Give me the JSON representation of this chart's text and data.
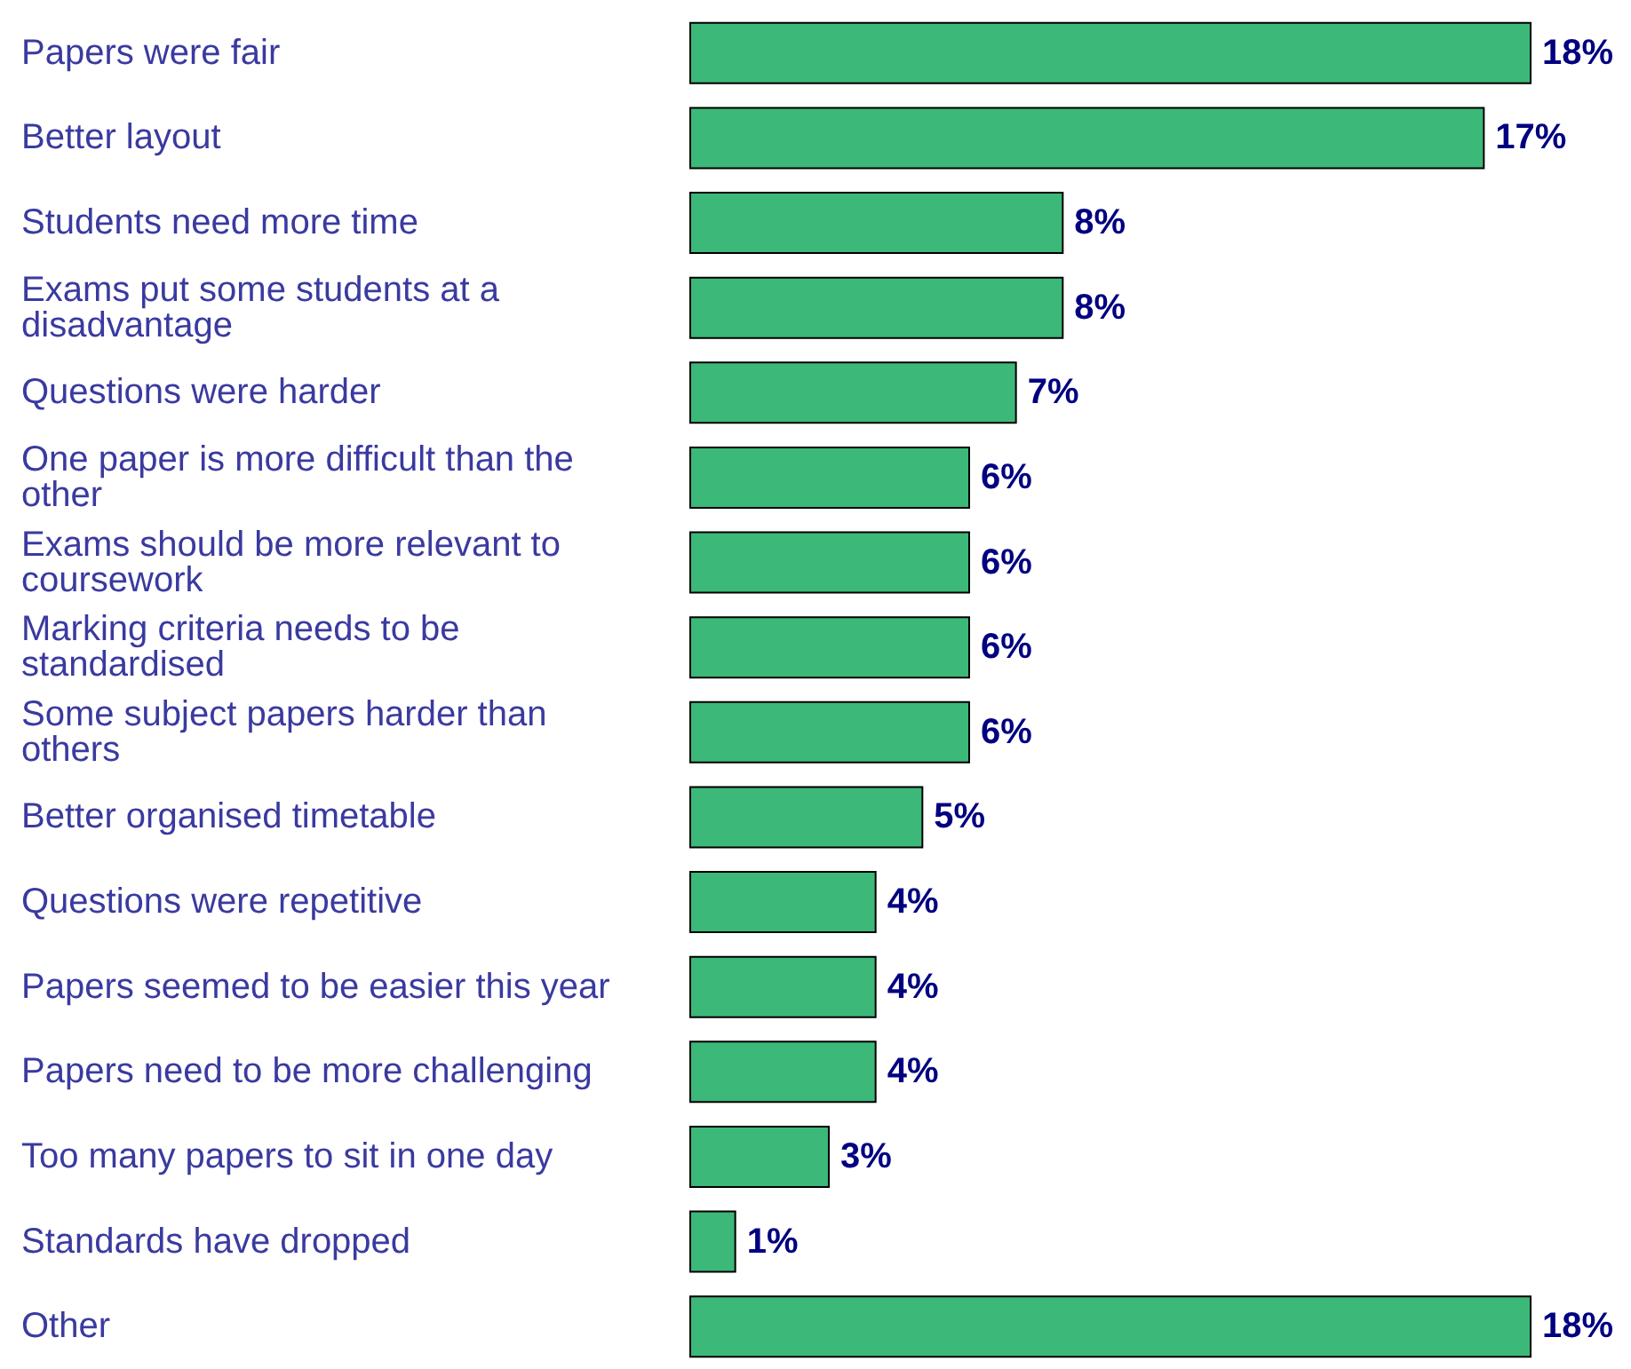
{
  "chart_data": {
    "type": "bar",
    "orientation": "horizontal",
    "categories": [
      "Papers were fair",
      "Better layout",
      "Students need more time",
      "Exams put some students at a disadvantage",
      "Questions were harder",
      "One paper is more difficult than the other",
      "Exams should be more relevant to coursework",
      "Marking criteria needs to be standardised",
      "Some subject papers harder than others",
      "Better organised timetable",
      "Questions were repetitive",
      "Papers seemed to be easier this year",
      "Papers need to be more challenging",
      "Too many papers to sit in one day",
      "Standards have dropped",
      "Other"
    ],
    "values": [
      18,
      17,
      8,
      8,
      7,
      6,
      6,
      6,
      6,
      5,
      4,
      4,
      4,
      3,
      1,
      18
    ],
    "value_labels": [
      "18%",
      "17%",
      "8%",
      "8%",
      "7%",
      "6%",
      "6%",
      "6%",
      "6%",
      "5%",
      "4%",
      "4%",
      "4%",
      "3%",
      "1%",
      "18%"
    ],
    "color": "#3cb878"
  }
}
